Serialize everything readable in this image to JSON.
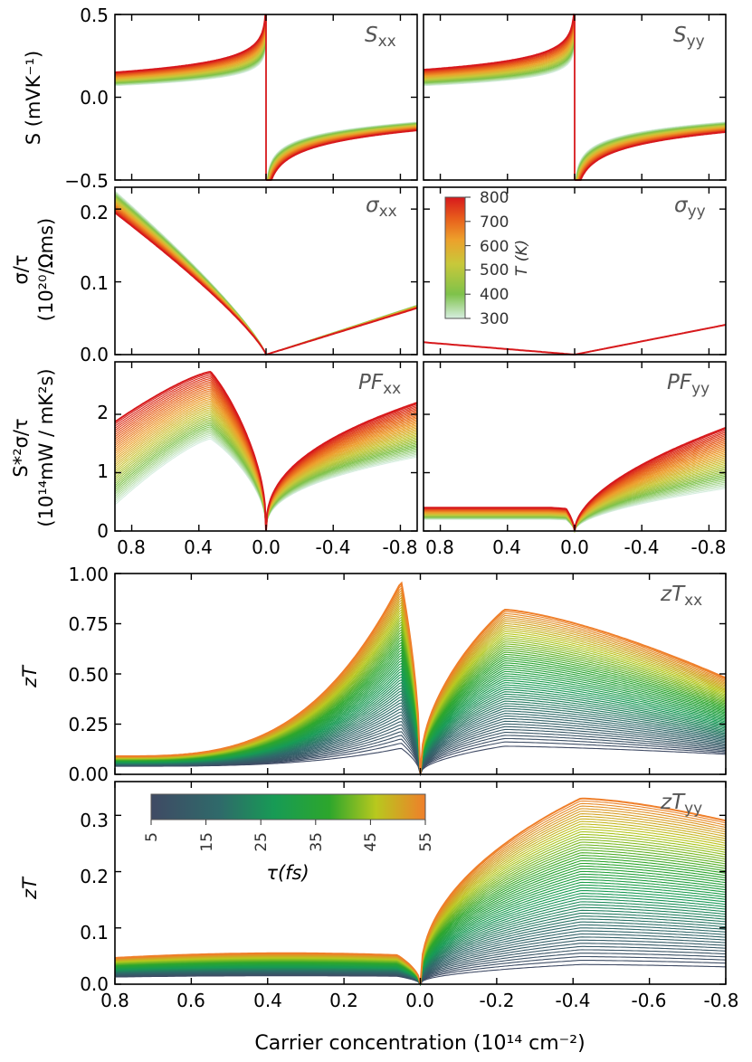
{
  "figure": {
    "xlabel": "Carrier concentration (10¹⁴ cm⁻²)"
  },
  "chart_data": [
    {
      "id": "Sxx",
      "type": "line",
      "panel_label": "S",
      "panel_sub": "xx",
      "ylabel": "S (mVK⁻¹)",
      "xlim": [
        0.9,
        -0.9
      ],
      "ylim": [
        -0.5,
        0.5
      ],
      "yticks": [
        "0.5",
        "0.0",
        "−0.5"
      ],
      "ytick_values": [
        0.5,
        0.0,
        -0.5
      ],
      "xtick_values": [
        0.8,
        0.4,
        0.0,
        -0.4,
        -0.8
      ],
      "series_param": {
        "name": "T (K)",
        "min": 300,
        "max": 800
      },
      "description": "Seebeck vs carrier concentration; ~0.09 at x=0.9, rising to 0.5 near x=0; jumps to −0.5 and recovers to ~−0.17 at x=−0.9"
    },
    {
      "id": "Syy",
      "type": "line",
      "panel_label": "S",
      "panel_sub": "yy",
      "xlim": [
        0.9,
        -0.9
      ],
      "ylim": [
        -0.5,
        0.5
      ],
      "ytick_values": [
        0.5,
        0.0,
        -0.5
      ],
      "xtick_values": [
        0.8,
        0.4,
        0.0,
        -0.4,
        -0.8
      ],
      "series_param": {
        "name": "T (K)",
        "min": 300,
        "max": 800
      }
    },
    {
      "id": "sxx",
      "type": "line",
      "panel_label": "σ",
      "panel_sub": "xx",
      "ylabel_line1": "σ/τ",
      "ylabel_line2": "(10²⁰/Ωms)",
      "xlim": [
        0.9,
        -0.9
      ],
      "ylim": [
        0,
        0.23
      ],
      "yticks": [
        "0.2",
        "0.1",
        "0.0"
      ],
      "ytick_values": [
        0.2,
        0.1,
        0.0
      ],
      "xtick_values": [
        0.8,
        0.4,
        0.0,
        -0.4,
        -0.8
      ],
      "x": [
        0.9,
        0.45,
        0.0,
        -0.45,
        -0.9
      ],
      "values": [
        0.21,
        0.115,
        0.0,
        0.032,
        0.066
      ],
      "series_param": {
        "name": "T (K)",
        "min": 300,
        "max": 800
      }
    },
    {
      "id": "syy",
      "type": "line",
      "panel_label": "σ",
      "panel_sub": "yy",
      "xlim": [
        0.9,
        -0.9
      ],
      "ylim": [
        0,
        0.23
      ],
      "ytick_values": [
        0.2,
        0.1,
        0.0
      ],
      "xtick_values": [
        0.8,
        0.4,
        0.0,
        -0.4,
        -0.8
      ],
      "x": [
        0.9,
        0.0,
        -0.9
      ],
      "values": [
        0.017,
        0.0,
        0.041
      ],
      "series_param": {
        "name": "T (K)",
        "min": 300,
        "max": 800
      }
    },
    {
      "id": "PFxx",
      "type": "line",
      "panel_label": "PF",
      "panel_sub": "xx",
      "ylabel_line1": "S*²σ/τ",
      "ylabel_line2": "(10¹⁴mW / mK²s)",
      "xlim": [
        0.9,
        -0.9
      ],
      "ylim": [
        0,
        2.9
      ],
      "yticks": [
        "2",
        "1",
        "0"
      ],
      "ytick_values": [
        2,
        1,
        0
      ],
      "xticks": [
        "0.8",
        "0.4",
        "0.0",
        "-0.4",
        "-0.8"
      ],
      "xtick_values": [
        0.8,
        0.4,
        0.0,
        -0.4,
        -0.8
      ],
      "peak_hole": {
        "x": 0.33,
        "value_T800": 2.73,
        "value_T300": 1.58
      },
      "tail_electron": {
        "x": -0.9,
        "value_T800": 2.2,
        "value_T300": 1.27
      },
      "series_param": {
        "name": "T (K)",
        "min": 300,
        "max": 800
      }
    },
    {
      "id": "PFyy",
      "type": "line",
      "panel_label": "PF",
      "panel_sub": "yy",
      "xlim": [
        0.9,
        -0.9
      ],
      "ylim": [
        0,
        2.9
      ],
      "ytick_values": [
        2,
        1,
        0
      ],
      "xticks": [
        "0.8",
        "0.4",
        "0.0",
        "-0.4",
        "-0.8"
      ],
      "xtick_values": [
        0.8,
        0.4,
        0.0,
        -0.4,
        -0.8
      ],
      "tail_electron": {
        "x": -0.9,
        "value_T800": 1.77,
        "value_T300": 0.73
      },
      "series_param": {
        "name": "T (K)",
        "min": 300,
        "max": 800
      }
    },
    {
      "id": "zTxx",
      "type": "line",
      "panel_label": "zT",
      "panel_sub": "xx",
      "ylabel": "zT",
      "xlim": [
        0.8,
        -0.8
      ],
      "ylim": [
        0,
        1.0
      ],
      "yticks": [
        "1.00",
        "0.75",
        "0.50",
        "0.25",
        "0.00"
      ],
      "ytick_values": [
        1.0,
        0.75,
        0.5,
        0.25,
        0.0
      ],
      "xtick_values": [
        0.8,
        0.6,
        0.4,
        0.2,
        0.0,
        -0.2,
        -0.4,
        -0.6,
        -0.8
      ],
      "peak_hole": {
        "x": 0.05,
        "value_tau55": 0.96
      },
      "peak_electron": {
        "x": -0.22,
        "value_tau55": 0.82
      },
      "series_param": {
        "name": "τ(fs)",
        "min": 5,
        "max": 55
      }
    },
    {
      "id": "zTyy",
      "type": "line",
      "panel_label": "zT",
      "panel_sub": "yy",
      "ylabel": "zT",
      "xlim": [
        0.8,
        -0.8
      ],
      "ylim": [
        0,
        0.36
      ],
      "yticks": [
        "0.3",
        "0.2",
        "0.1",
        "0.0"
      ],
      "ytick_values": [
        0.3,
        0.2,
        0.1,
        0.0
      ],
      "xticks": [
        "0.8",
        "0.6",
        "0.4",
        "0.2",
        "0.0",
        "-0.2",
        "-0.4",
        "-0.6",
        "-0.8"
      ],
      "xtick_values": [
        0.8,
        0.6,
        0.4,
        0.2,
        0.0,
        -0.2,
        -0.4,
        -0.6,
        -0.8
      ],
      "peak_electron": {
        "x": -0.42,
        "value_tau55": 0.33
      },
      "series_param": {
        "name": "τ(fs)",
        "min": 5,
        "max": 55
      }
    }
  ],
  "colorbars": {
    "temperature": {
      "label": "T (K)",
      "ticks": [
        "800",
        "700",
        "600",
        "500",
        "400",
        "300"
      ],
      "colors": [
        "#d7191c",
        "#e8601c",
        "#eda02b",
        "#c8c83a",
        "#7ec24a",
        "#d7eee0"
      ]
    },
    "tau": {
      "label": "τ(fs)",
      "ticks": [
        "5",
        "15",
        "25",
        "35",
        "45",
        "55"
      ],
      "colors": [
        "#3f4a64",
        "#2f6a6a",
        "#179b55",
        "#2da62c",
        "#b8c81e",
        "#ef7f2a"
      ]
    }
  }
}
